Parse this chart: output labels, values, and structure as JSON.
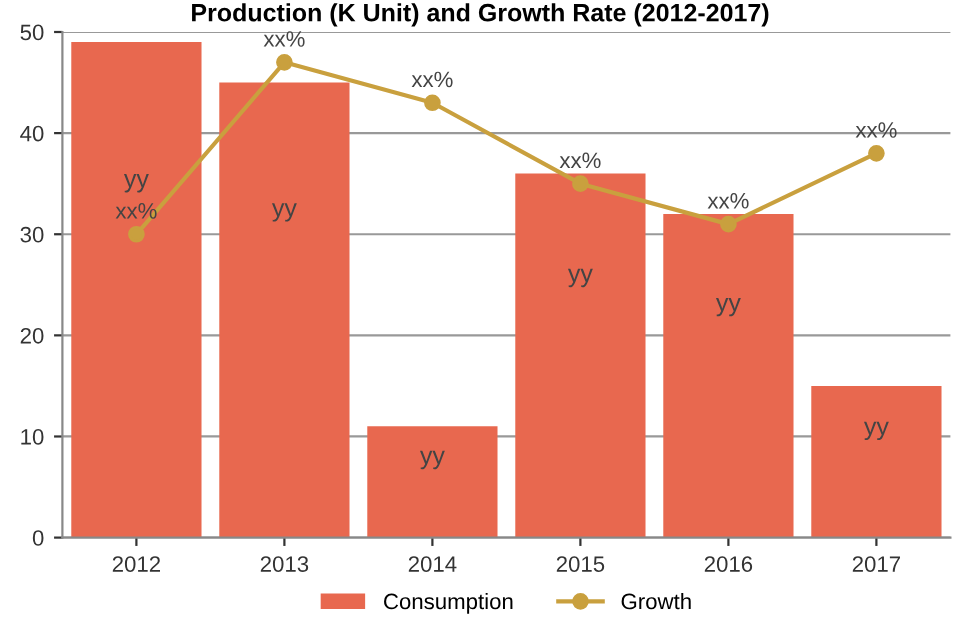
{
  "chart_data": {
    "type": "bar",
    "title": "Production (K Unit) and Growth Rate (2012-2017)",
    "categories": [
      "2012",
      "2013",
      "2014",
      "2015",
      "2016",
      "2017"
    ],
    "series": [
      {
        "name": "Consumption",
        "color": "#e8684f",
        "values": [
          49,
          45,
          11,
          36,
          32,
          15
        ],
        "value_labels": [
          "yy",
          "yy",
          "yy",
          "yy",
          "yy",
          "yy"
        ]
      },
      {
        "name": "Growth",
        "type": "line",
        "color": "#c9a03e",
        "values": [
          30,
          47,
          43,
          35,
          31,
          38
        ],
        "value_labels": [
          "xx%",
          "xx%",
          "xx%",
          "xx%",
          "xx%",
          "xx%"
        ],
        "marker": "circle"
      }
    ],
    "ylim": [
      0,
      50
    ],
    "yticks": [
      0,
      10,
      20,
      30,
      40,
      50
    ],
    "grid": "y",
    "legend": "bottom"
  }
}
